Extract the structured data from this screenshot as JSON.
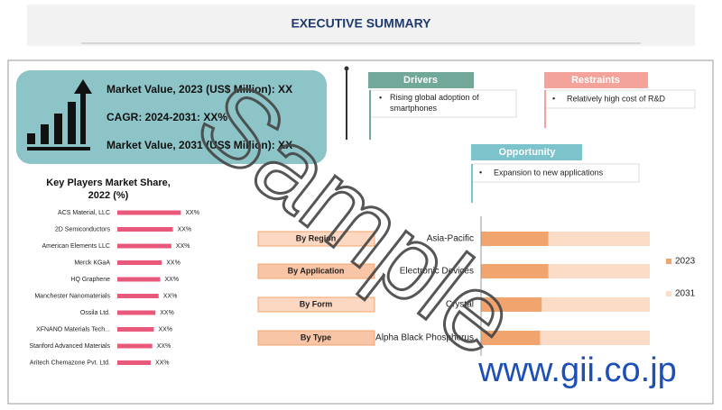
{
  "header": {
    "title": "EXECUTIVE SUMMARY"
  },
  "market_box": {
    "lines": [
      "Market Value, 2023 (US$ Million): XX",
      "CAGR: 2024-2031: XX%",
      "Market Value, 2031 (US$ Million): XX"
    ]
  },
  "drivers": {
    "title": "Drivers",
    "items": [
      "Rising global adoption of smartphones"
    ]
  },
  "restraints": {
    "title": "Restraints",
    "items": [
      "Relatively high cost of R&D"
    ]
  },
  "opportunity": {
    "title": "Opportunity",
    "items": [
      "Expansion to new applications"
    ]
  },
  "key_players": {
    "title": "Key Players Market Share, 2022 (%)",
    "xlim": [
      0,
      25
    ],
    "categories": [
      "ACS Material, LLC",
      "2D Semiconductors",
      "American Elements LLC",
      "Merck KGaA",
      "HQ Graphene",
      "Manchester Nanomaterials",
      "Ossila Ltd.",
      "XFNANO Materials Tech...",
      "Stanford Advanced Materials",
      "Aritech Chemazone Pvt. Ltd."
    ],
    "values": [
      20,
      17.5,
      17,
      14,
      13.5,
      13,
      12,
      11.5,
      11,
      10.5
    ],
    "value_labels": [
      "XX%",
      "XX%",
      "XX%",
      "XX%",
      "XX%",
      "XX%",
      "XX%",
      "XX%",
      "XX%",
      "XX%"
    ]
  },
  "segments": {
    "labels": [
      "By Region",
      "By Application",
      "By Form",
      "By Type"
    ],
    "categories": [
      "Asia-Pacific",
      "Electronic Devices",
      "Crystal",
      "Alpha Black Phosphorus"
    ],
    "xlim": [
      0,
      100
    ],
    "series": [
      {
        "name": "2023",
        "color": "#f2a46f",
        "values": [
          40,
          40,
          36,
          35
        ]
      },
      {
        "name": "2031",
        "color": "#fbdcc6",
        "values": [
          60,
          60,
          64,
          65
        ]
      }
    ]
  },
  "watermark": {
    "text": "Sample",
    "url": "www.gii.co.jp"
  }
}
